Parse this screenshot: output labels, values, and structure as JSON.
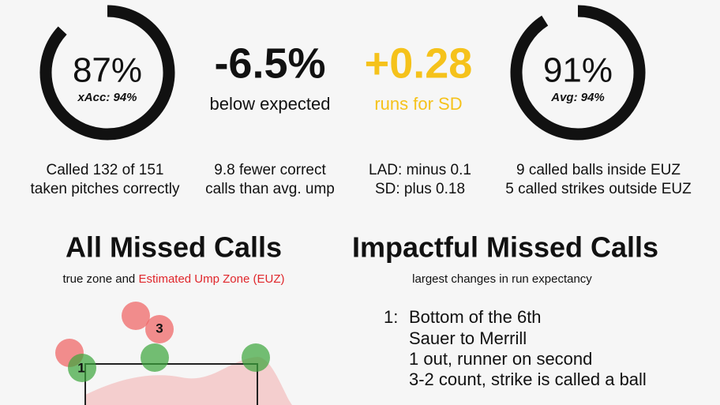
{
  "gauges": [
    {
      "value": 87,
      "label": "87%",
      "sub": "xAcc: 94%"
    },
    {
      "value": 91,
      "label": "91%",
      "sub": "Avg: 94%"
    }
  ],
  "stats": [
    {
      "value": "-6.5%",
      "caption": "below expected"
    },
    {
      "value": "+0.28",
      "caption": "runs for SD"
    }
  ],
  "notes": [
    [
      "Called 132 of 151",
      "taken pitches correctly"
    ],
    [
      "9.8 fewer correct",
      "calls than avg. ump"
    ],
    [
      "LAD: minus 0.1",
      "SD: plus 0.18"
    ],
    [
      "9 called balls inside EUZ",
      "5 called strikes outside EUZ"
    ]
  ],
  "missed": {
    "title": "All Missed Calls",
    "subtitle": "true zone and",
    "subtitle_highlight": "Estimated Ump Zone (EUZ)",
    "markers": [
      "1",
      "3"
    ]
  },
  "impactful": {
    "title": "Impactful Missed Calls",
    "subtitle": "largest changes in run expectancy",
    "items": [
      {
        "number": "1:",
        "lines": [
          "Bottom of the 6th",
          "Sauer to Merrill",
          "1 out, runner on second",
          "3-2 count, strike is called a ball"
        ]
      }
    ]
  }
}
